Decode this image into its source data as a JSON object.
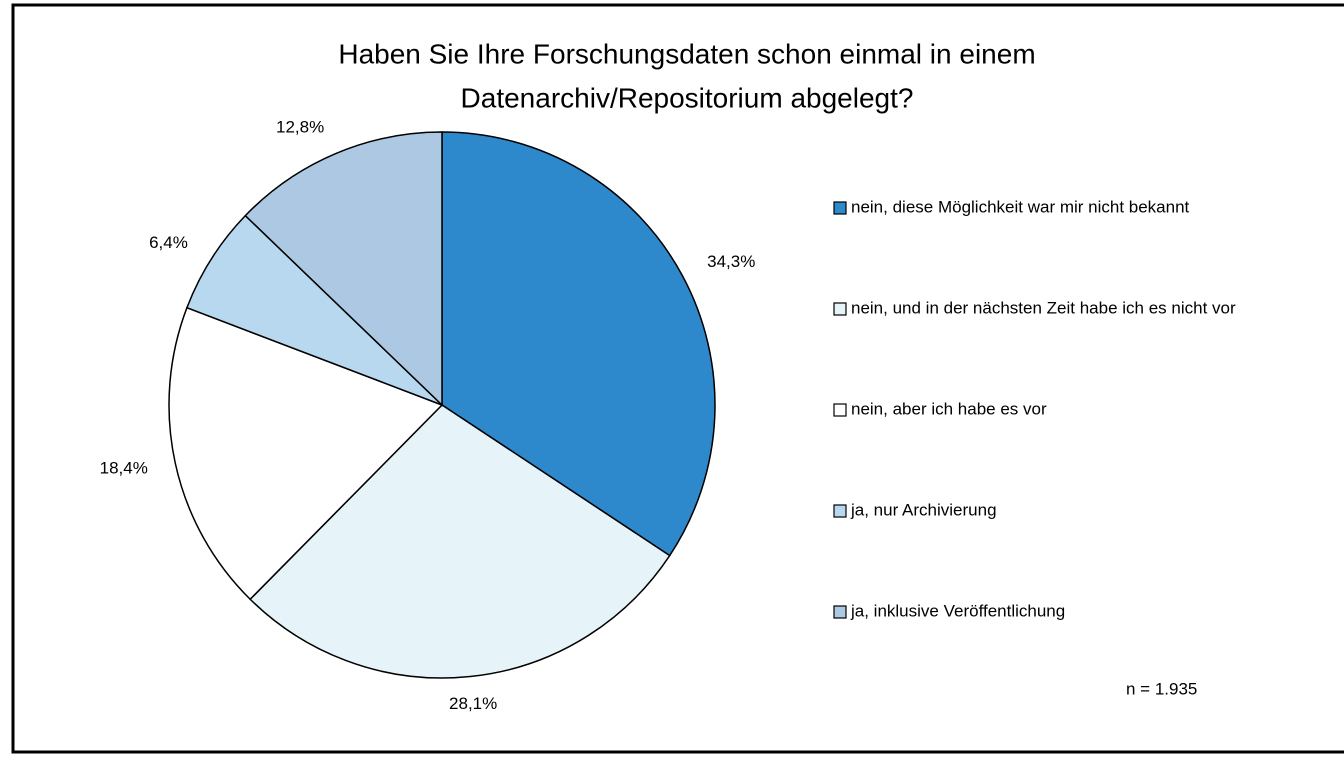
{
  "chart_data": {
    "type": "pie",
    "title": [
      "Haben Sie Ihre Forschungsdaten schon einmal in einem",
      "Datenarchiv/Repositorium abgelegt?"
    ],
    "categories": [
      "nein, diese Möglichkeit war mir nicht bekannt",
      "nein, und in der nächsten Zeit habe ich es nicht vor",
      "nein, aber ich habe es vor",
      "ja, nur Archivierung",
      "ja, inklusive Veröffentlichung"
    ],
    "values": [
      34.3,
      28.1,
      18.4,
      6.4,
      12.8
    ],
    "value_labels": [
      "34,3%",
      "28,1%",
      "18,4%",
      "6,4%",
      "12,8%"
    ],
    "colors": [
      "#2e88cc",
      "#e6f4fa",
      "#ffffff",
      "#b8d8ef",
      "#adc8e2"
    ],
    "legend": "right",
    "annotation": "n = 1.935"
  }
}
